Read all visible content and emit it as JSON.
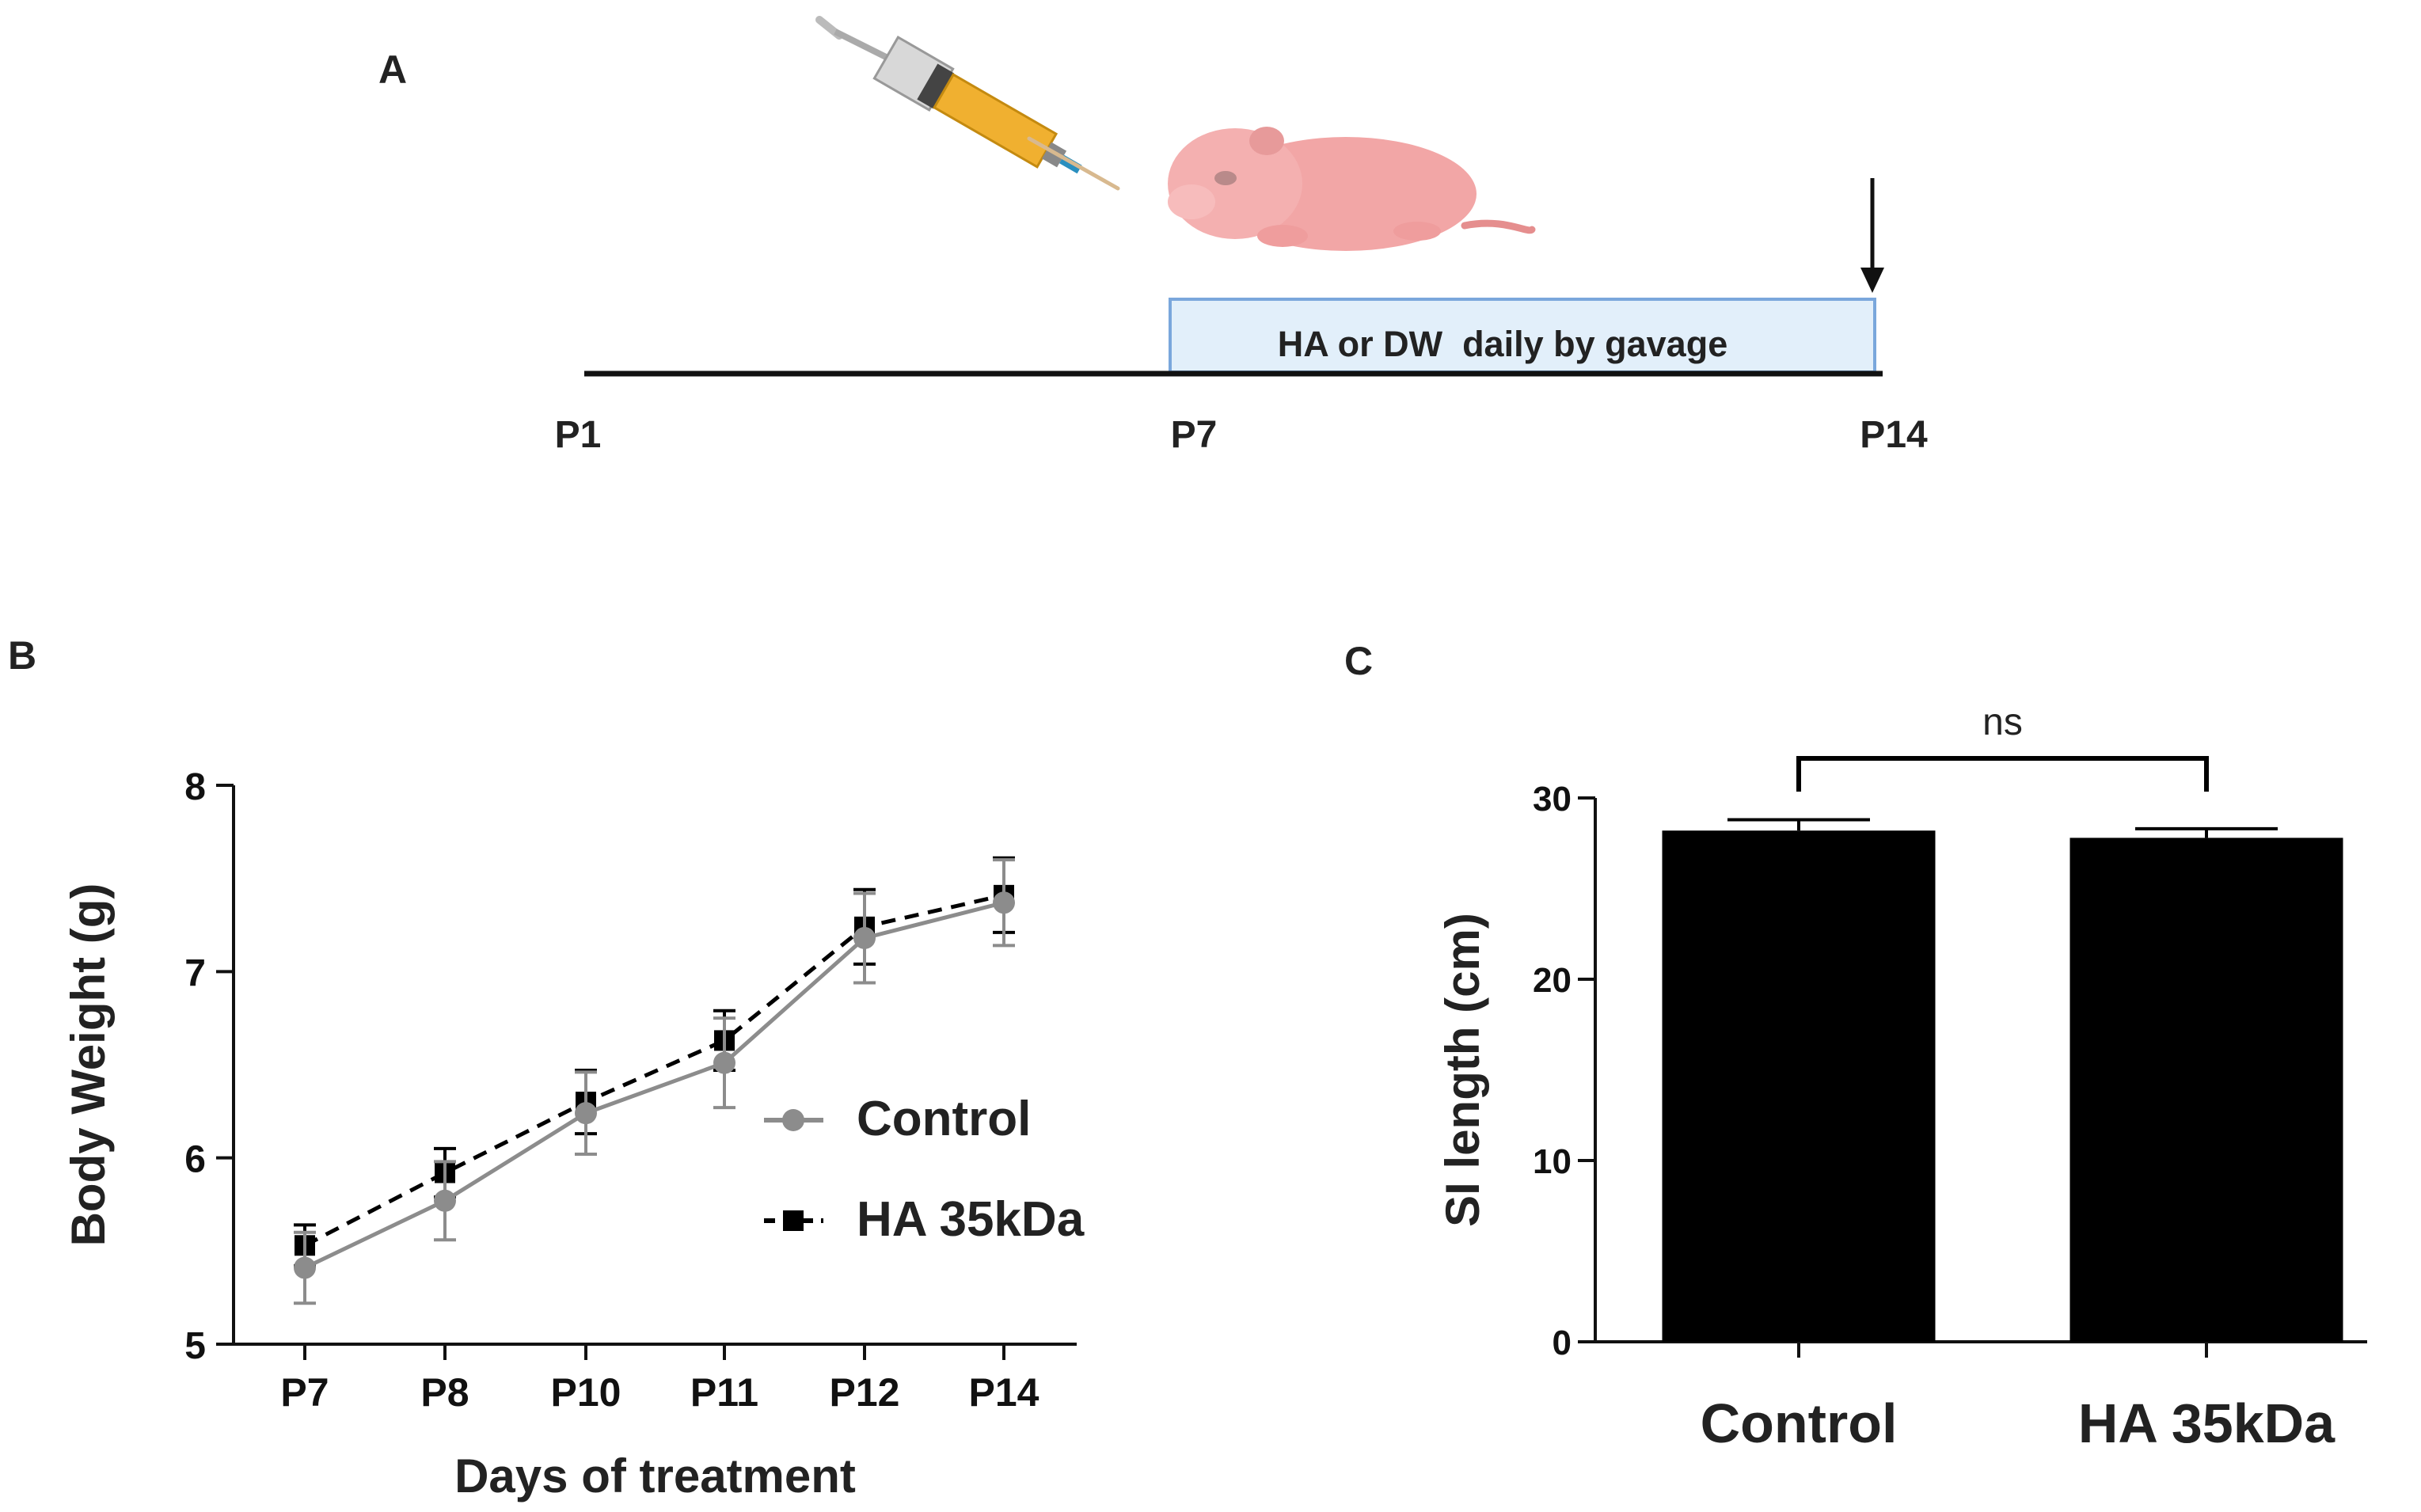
{
  "panel_a": {
    "label": "A",
    "bar_text": "HA or DW  daily by gavage",
    "timepoints": [
      "P1",
      "P7",
      "P14"
    ],
    "colors": {
      "timeline": "#111111",
      "bar_fill": "#e2effa",
      "bar_stroke": "#7aa7dc",
      "mouse": "#f2a6a6"
    }
  },
  "chart_data": [
    {
      "panel": "B",
      "type": "line",
      "title": "",
      "xlabel": "Days of treatment",
      "ylabel": "Body Weight (g)",
      "categories": [
        "P7",
        "P8",
        "P10",
        "P11",
        "P12",
        "P14"
      ],
      "ylim": [
        5,
        8
      ],
      "yticks": [
        "5",
        "6",
        "7",
        "8"
      ],
      "legend_position": "right",
      "series": [
        {
          "name": "Control",
          "marker": "circle",
          "line": "solid",
          "color": "#8c8c8c",
          "values": [
            5.41,
            5.77,
            6.24,
            6.51,
            7.18,
            7.37
          ],
          "error": [
            0.19,
            0.21,
            0.22,
            0.24,
            0.24,
            0.23
          ]
        },
        {
          "name": "HA 35kDa",
          "marker": "square",
          "line": "dashed",
          "color": "#000000",
          "values": [
            5.53,
            5.92,
            6.3,
            6.63,
            7.24,
            7.41
          ],
          "error": [
            0.11,
            0.13,
            0.17,
            0.16,
            0.2,
            0.2
          ]
        }
      ]
    },
    {
      "panel": "C",
      "type": "bar",
      "title": "",
      "xlabel": "",
      "ylabel": "SI length (cm)",
      "categories": [
        "Control",
        "HA 35kDa"
      ],
      "values": [
        28.2,
        27.8
      ],
      "error": [
        0.6,
        0.5
      ],
      "ylim": [
        0,
        30
      ],
      "yticks": [
        "0",
        "10",
        "20",
        "30"
      ],
      "annotation": "ns",
      "color": "#000000"
    }
  ]
}
